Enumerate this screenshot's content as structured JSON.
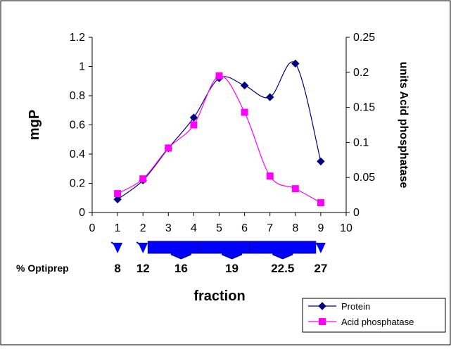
{
  "chart_data": {
    "type": "line",
    "xlabel": "fraction",
    "ylabel": "mgP",
    "y2label": "units Acid phosphatase",
    "xlim": [
      0,
      10
    ],
    "ylim": [
      0,
      1.2
    ],
    "y2lim": [
      0,
      0.25
    ],
    "xticks": [
      "0",
      "1",
      "2",
      "3",
      "4",
      "5",
      "6",
      "7",
      "8",
      "9",
      "10"
    ],
    "yticks": [
      "0",
      "0.2",
      "0.4",
      "0.6",
      "0.8",
      "1",
      "1.2"
    ],
    "y2ticks": [
      "0",
      "0.05",
      "0.1",
      "0.15",
      "0.2",
      "0.25"
    ],
    "grid": false,
    "legend_position": "bottom-right",
    "series": [
      {
        "name": "Protein",
        "axis": "left",
        "color": "#000080",
        "marker": "diamond",
        "x": [
          1,
          2,
          3,
          4,
          5,
          6,
          7,
          8,
          9
        ],
        "values": [
          0.09,
          0.22,
          0.44,
          0.65,
          0.92,
          0.87,
          0.79,
          1.02,
          0.35
        ]
      },
      {
        "name": "Acid phosphatase",
        "axis": "right",
        "color": "#ff00ff",
        "marker": "square",
        "x": [
          1,
          2,
          3,
          4,
          5,
          6,
          7,
          8,
          9
        ],
        "values": [
          0.027,
          0.048,
          0.092,
          0.125,
          0.195,
          0.143,
          0.052,
          0.034,
          0.014
        ]
      }
    ],
    "annotation": {
      "label": "% Optiprep",
      "color": "#0000ff",
      "steps": [
        {
          "value": "8",
          "x": 1,
          "arrow": "small"
        },
        {
          "value": "12",
          "x": 2,
          "arrow": "small"
        },
        {
          "value": "16",
          "x": 3.5,
          "arrow": "block"
        },
        {
          "value": "19",
          "x": 5.5,
          "arrow": "block"
        },
        {
          "value": "22.5",
          "x": 7.5,
          "arrow": "block"
        },
        {
          "value": "27",
          "x": 9,
          "arrow": "small"
        }
      ]
    }
  }
}
